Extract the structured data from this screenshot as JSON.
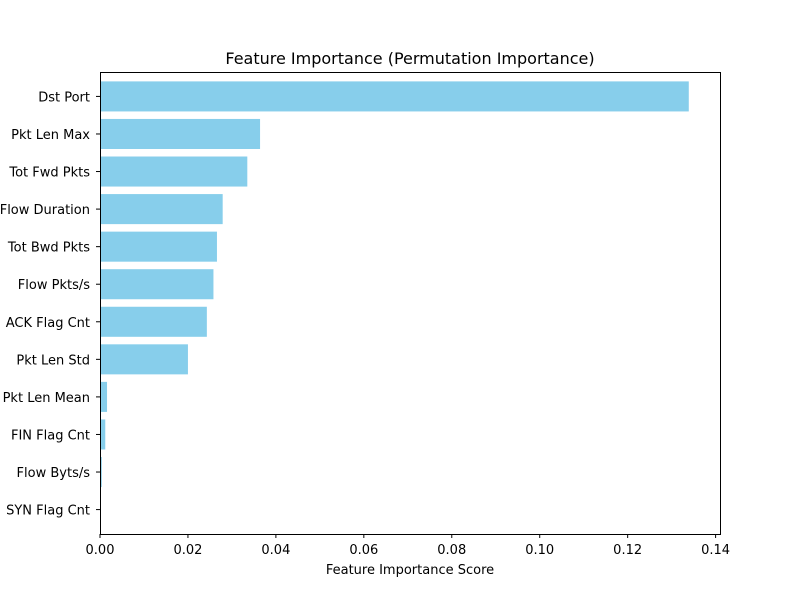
{
  "chart_data": {
    "type": "bar",
    "orientation": "horizontal",
    "title": "Feature Importance (Permutation Importance)",
    "xlabel": "Feature Importance Score",
    "ylabel": "",
    "xlim": [
      0.0,
      0.141
    ],
    "xticks": [
      "0.00",
      "0.02",
      "0.04",
      "0.06",
      "0.08",
      "0.10",
      "0.12",
      "0.14"
    ],
    "xtick_values": [
      0.0,
      0.02,
      0.04,
      0.06,
      0.08,
      0.1,
      0.12,
      0.14
    ],
    "grid": false,
    "bar_color": "#87ceeb",
    "categories": [
      "Dst Port",
      "Pkt Len Max",
      "Tot Fwd Pkts",
      "Flow Duration",
      "Tot Bwd Pkts",
      "Flow Pkts/s",
      "ACK Flag Cnt",
      "Pkt Len Std",
      "Pkt Len Mean",
      "FIN Flag Cnt",
      "Flow Byts/s",
      "SYN Flag Cnt"
    ],
    "values": [
      0.1339,
      0.0364,
      0.0335,
      0.0279,
      0.0266,
      0.0258,
      0.0243,
      0.02,
      0.0016,
      0.0012,
      0.0004,
      0.0
    ]
  }
}
